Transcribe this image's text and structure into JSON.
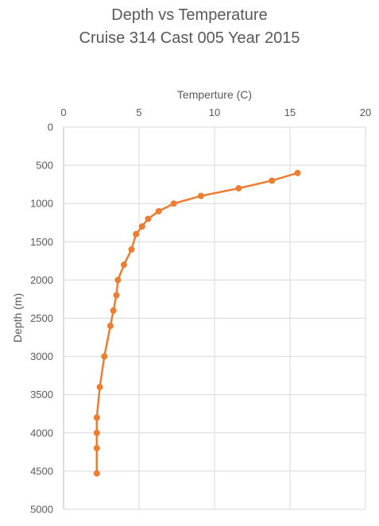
{
  "chart_data": {
    "type": "scatter",
    "title": "Depth vs Temperature",
    "subtitle": "Cruise 314 Cast 005 Year 2015",
    "xlabel": "Temperture (C)",
    "ylabel": "Depth (m)",
    "xlim": [
      0,
      20
    ],
    "ylim": [
      0,
      5000
    ],
    "y_reversed": true,
    "x_axis_position": "top",
    "x_ticks": [
      0,
      5,
      10,
      15,
      20
    ],
    "y_ticks": [
      0,
      500,
      1000,
      1500,
      2000,
      2500,
      3000,
      3500,
      4000,
      4500,
      5000
    ],
    "grid": true,
    "legend": "none",
    "series": [
      {
        "color": "#ED7D31",
        "lines": true,
        "markers": true,
        "points": [
          {
            "x": 15.5,
            "y": 600
          },
          {
            "x": 13.8,
            "y": 700
          },
          {
            "x": 11.6,
            "y": 800
          },
          {
            "x": 9.1,
            "y": 900
          },
          {
            "x": 7.3,
            "y": 1000
          },
          {
            "x": 6.3,
            "y": 1100
          },
          {
            "x": 5.6,
            "y": 1200
          },
          {
            "x": 5.2,
            "y": 1300
          },
          {
            "x": 4.8,
            "y": 1400
          },
          {
            "x": 4.5,
            "y": 1600
          },
          {
            "x": 4.0,
            "y": 1800
          },
          {
            "x": 3.6,
            "y": 2000
          },
          {
            "x": 3.5,
            "y": 2200
          },
          {
            "x": 3.3,
            "y": 2400
          },
          {
            "x": 3.1,
            "y": 2600
          },
          {
            "x": 2.7,
            "y": 3000
          },
          {
            "x": 2.4,
            "y": 3400
          },
          {
            "x": 2.2,
            "y": 3800
          },
          {
            "x": 2.2,
            "y": 4000
          },
          {
            "x": 2.2,
            "y": 4200
          },
          {
            "x": 2.2,
            "y": 4530
          }
        ]
      }
    ]
  }
}
